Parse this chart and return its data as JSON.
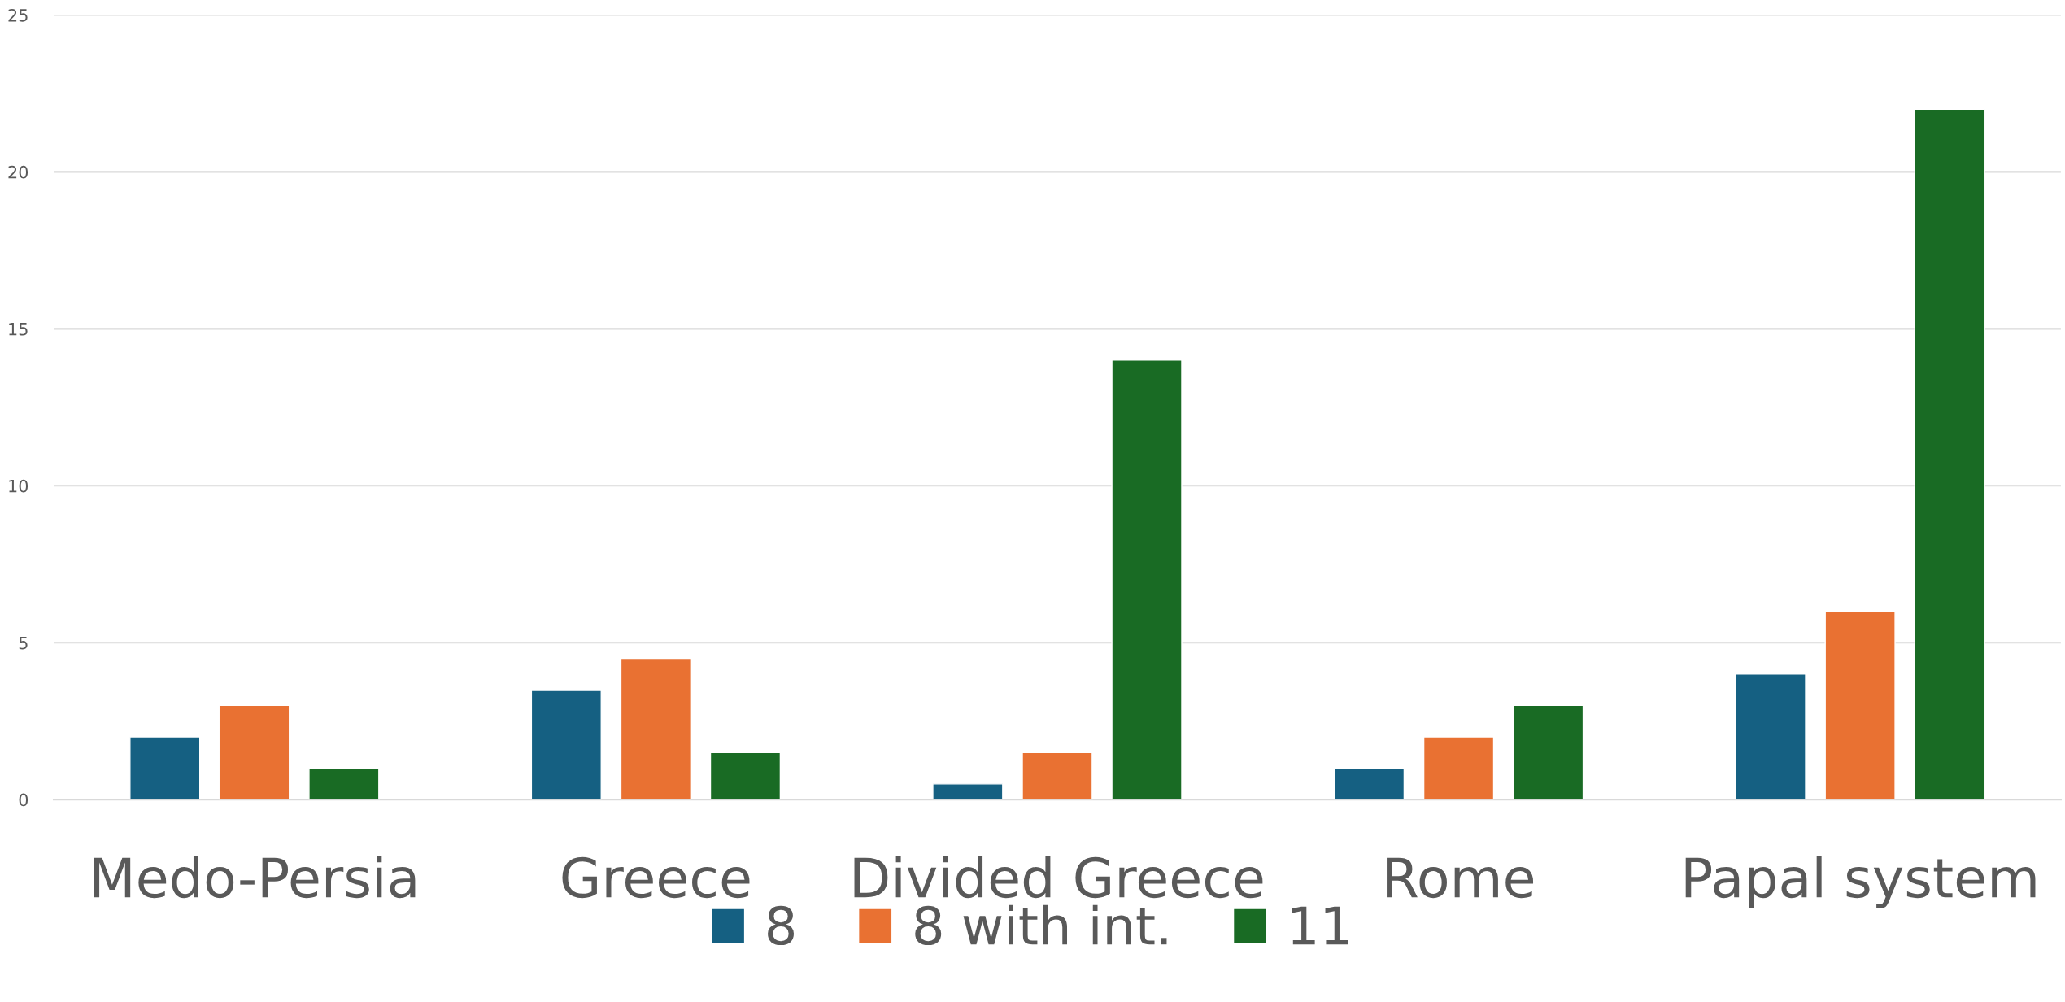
{
  "chart_data": {
    "type": "bar",
    "categories": [
      "Medo-Persia",
      "Greece",
      "Divided Greece",
      "Rome",
      "Papal system"
    ],
    "series": [
      {
        "name": "8",
        "color": "#156082",
        "values": [
          2,
          3.5,
          0.5,
          1,
          4
        ]
      },
      {
        "name": "8 with int.",
        "color": "#e97132",
        "values": [
          3,
          4.5,
          1.5,
          2,
          6
        ]
      },
      {
        "name": "11",
        "color": "#196b24",
        "values": [
          1,
          1.5,
          14,
          3,
          22
        ]
      }
    ],
    "ylim": [
      0,
      25
    ],
    "yticks": [
      0,
      5,
      10,
      15,
      20,
      25
    ],
    "grid": "y",
    "legend": "bottom"
  }
}
